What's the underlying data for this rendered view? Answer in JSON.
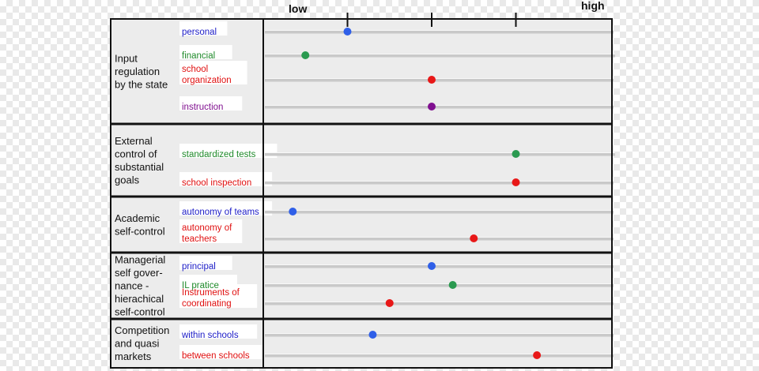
{
  "chart_data": {
    "type": "scatter",
    "title": "",
    "scale": {
      "low_label": "low",
      "high_label": "high",
      "ticks": [
        1,
        2,
        3
      ],
      "range": [
        0,
        4
      ]
    },
    "groups": [
      {
        "label_lines": [
          "Input",
          "regulation",
          "by the state"
        ],
        "items": [
          {
            "label_lines": [
              "personal"
            ],
            "value": 1.0,
            "color": "#2f5fe8",
            "label_color": "#2020c8"
          },
          {
            "label_lines": [
              "financial"
            ],
            "value": 0.5,
            "color": "#2a9a50",
            "label_color": "#1f8a2a"
          },
          {
            "label_lines": [
              "school",
              "organization"
            ],
            "value": 2.0,
            "color": "#e81818",
            "label_color": "#e01010"
          },
          {
            "label_lines": [
              "instruction"
            ],
            "value": 2.0,
            "color": "#801090",
            "label_color": "#801090"
          }
        ]
      },
      {
        "label_lines": [
          "External",
          "control of",
          "substantial",
          "goals"
        ],
        "items": [
          {
            "label_lines": [
              "standardized tests"
            ],
            "value": 3.0,
            "color": "#2a9a50",
            "label_color": "#1f8a2a"
          },
          {
            "label_lines": [
              "school inspection"
            ],
            "value": 3.0,
            "color": "#e81818",
            "label_color": "#e01010"
          }
        ]
      },
      {
        "label_lines": [
          "Academic",
          "self-control"
        ],
        "items": [
          {
            "label_lines": [
              "autonomy of teams"
            ],
            "value": 0.35,
            "color": "#2f5fe8",
            "label_color": "#2020c8"
          },
          {
            "label_lines": [
              "autonomy of",
              "teachers"
            ],
            "value": 2.5,
            "color": "#e81818",
            "label_color": "#e01010"
          }
        ]
      },
      {
        "label_lines": [
          "Managerial",
          "self gover-",
          "nance -",
          "hierachical",
          "self-control"
        ],
        "items": [
          {
            "label_lines": [
              "principal"
            ],
            "value": 2.0,
            "color": "#2f5fe8",
            "label_color": "#2020c8"
          },
          {
            "label_lines": [
              "IL pratice"
            ],
            "value": 2.25,
            "color": "#2a9a50",
            "label_color": "#1f8a2a"
          },
          {
            "label_lines": [
              "Instruments of",
              "coordinating"
            ],
            "value": 1.5,
            "color": "#e81818",
            "label_color": "#e01010"
          }
        ]
      },
      {
        "label_lines": [
          "Competition",
          "and quasi",
          "markets"
        ],
        "items": [
          {
            "label_lines": [
              "within schools"
            ],
            "value": 1.3,
            "color": "#2f5fe8",
            "label_color": "#2020c8"
          },
          {
            "label_lines": [
              "between schools"
            ],
            "value": 3.25,
            "color": "#e81818",
            "label_color": "#e01010"
          }
        ]
      }
    ]
  }
}
